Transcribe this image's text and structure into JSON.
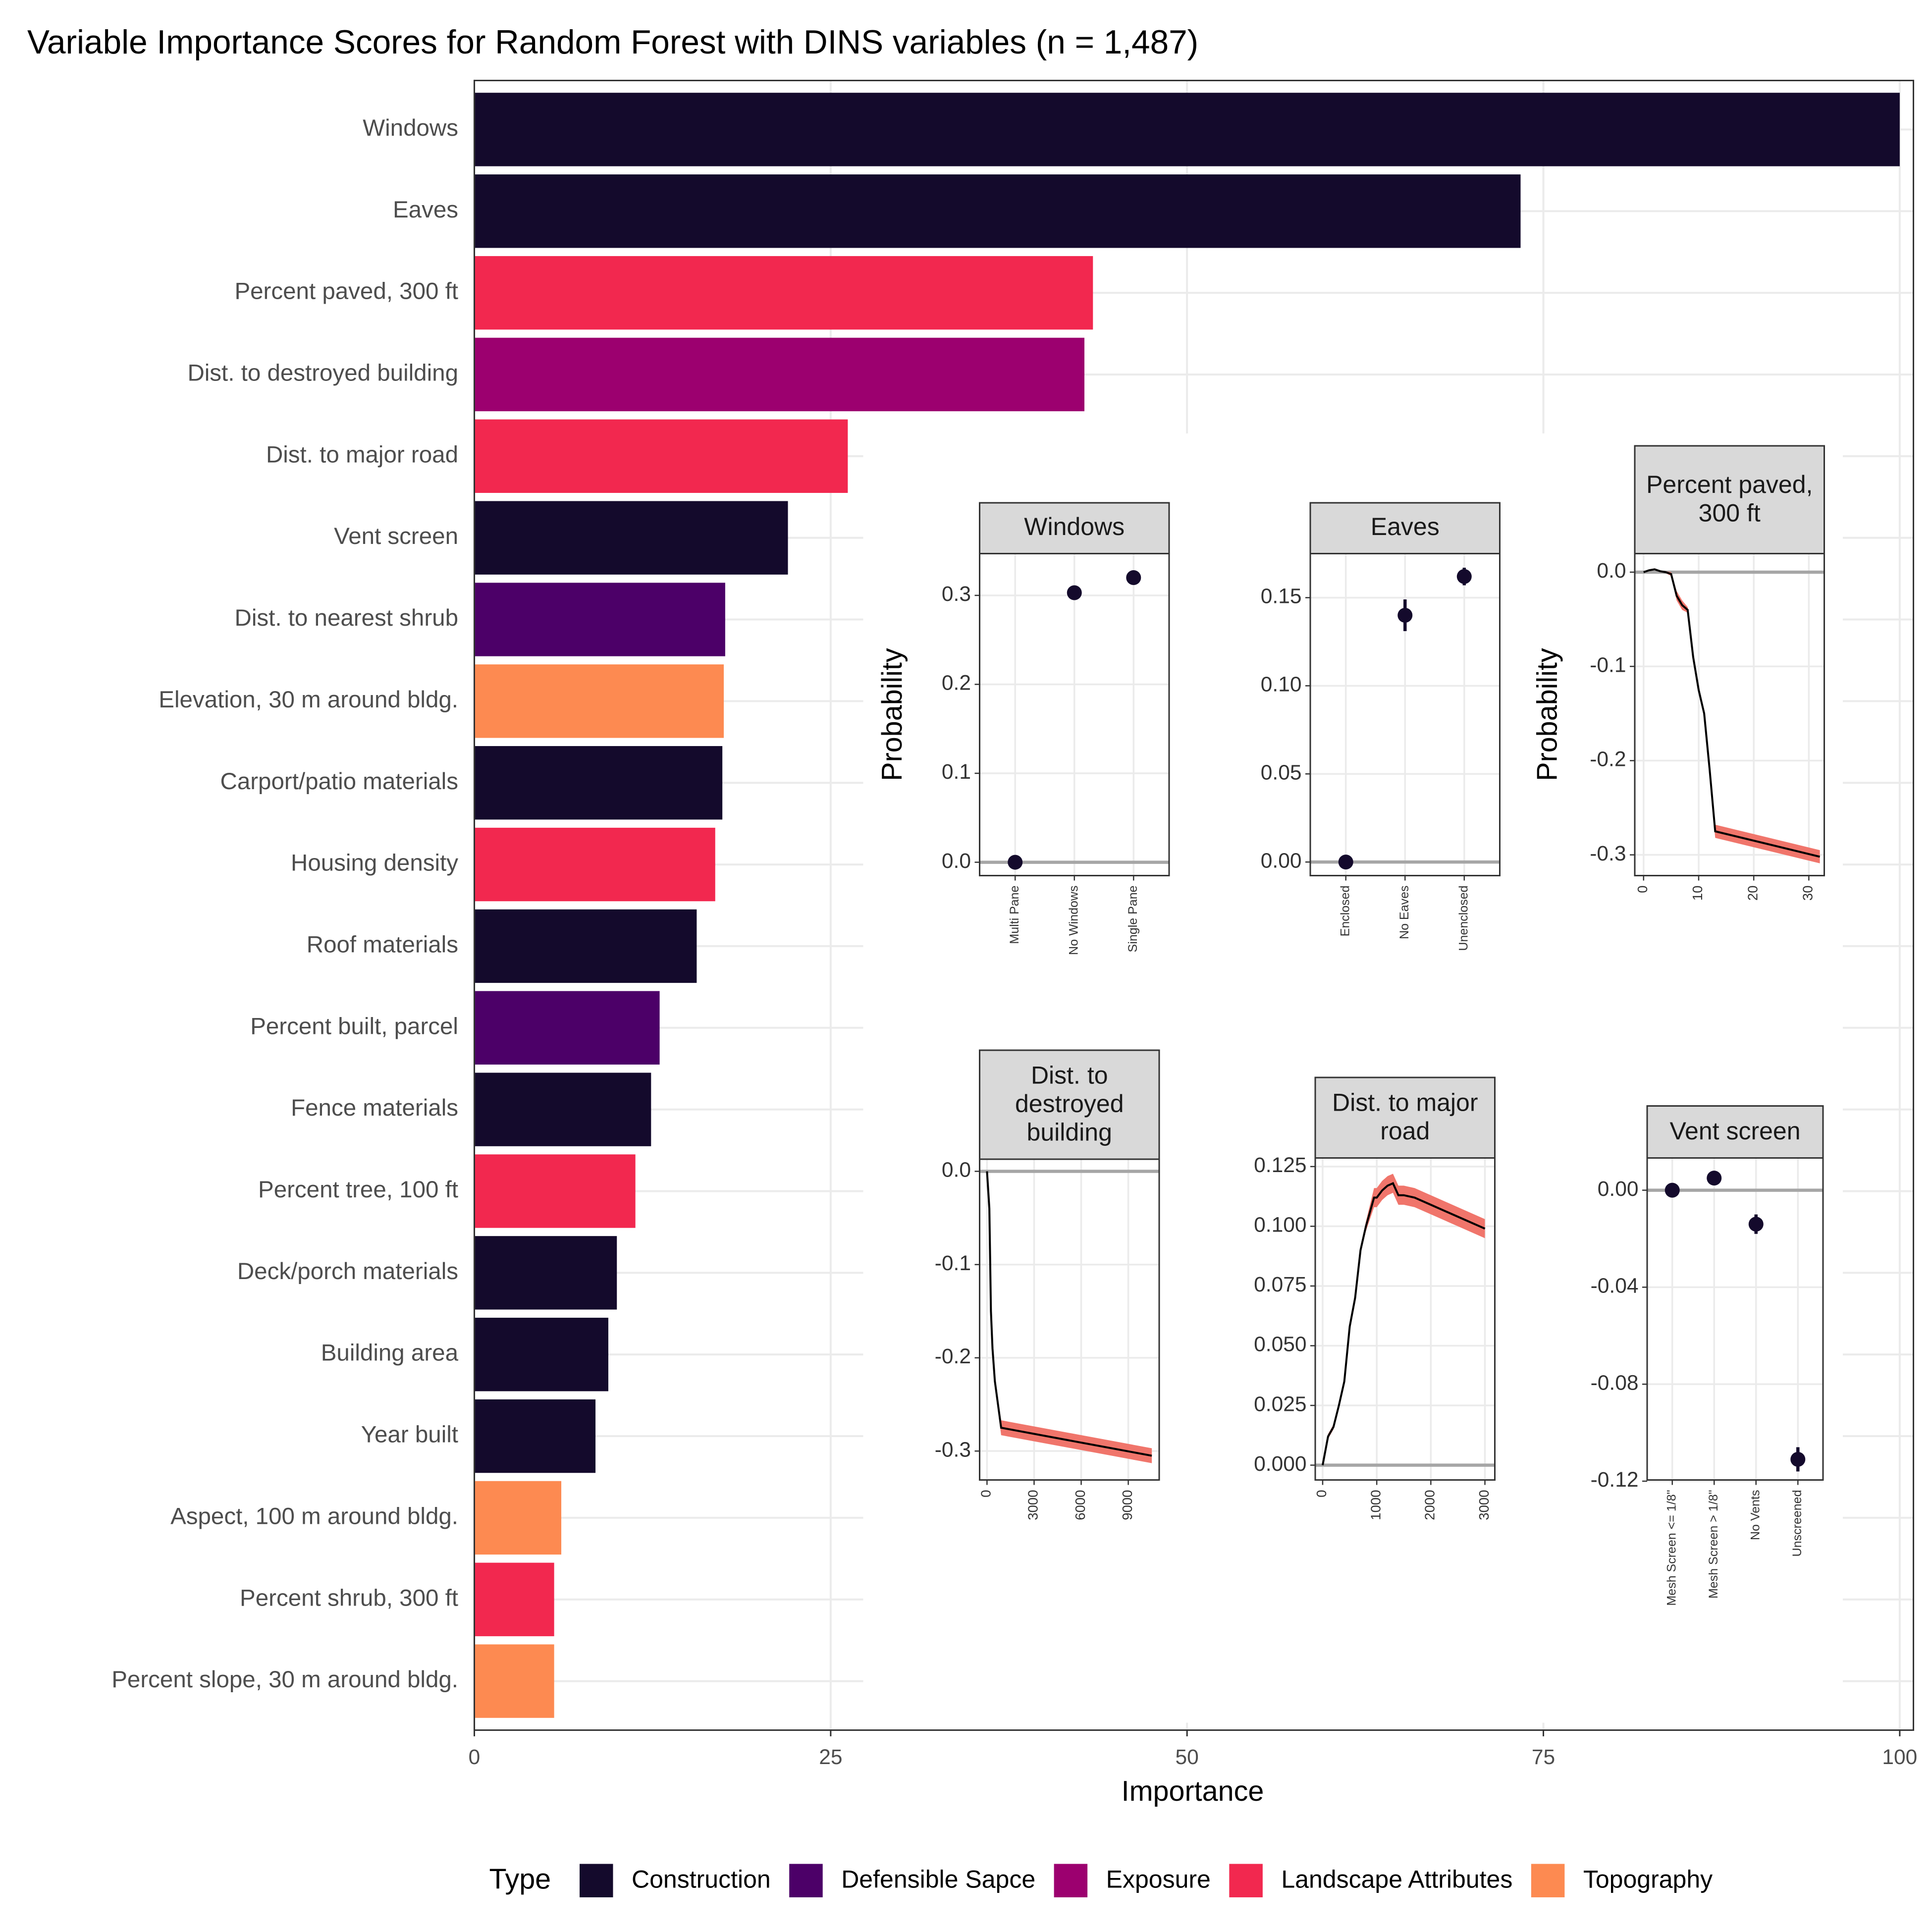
{
  "chart_data": [
    {
      "type": "bar",
      "orientation": "horizontal",
      "title": "Variable Importance Scores for Random Forest with DINS variables (n = 1,487)",
      "xlabel": "Importance",
      "categories": [
        "Windows",
        "Eaves",
        "Percent paved, 300 ft",
        "Dist. to destroyed building",
        "Dist. to major road",
        "Vent screen",
        "Dist. to nearest shrub",
        "Elevation, 30 m around bldg.",
        "Carport/patio materials",
        "Housing density",
        "Roof materials",
        "Percent built, parcel",
        "Fence materials",
        "Percent tree, 100 ft",
        "Deck/porch materials",
        "Building area",
        "Year built",
        "Aspect, 100 m around bldg.",
        "Percent shrub, 300 ft",
        "Percent slope, 30 m around bldg."
      ],
      "series": [
        {
          "name": "Construction",
          "color": "#140a2c",
          "values": [
            100,
            73.4,
            null,
            null,
            null,
            22,
            null,
            null,
            17.4,
            null,
            15.6,
            null,
            12.4,
            null,
            10,
            9.4,
            8.5,
            null,
            null,
            null
          ]
        },
        {
          "name": "Defensible Sapce",
          "color": "#4c0068",
          "values": [
            null,
            null,
            null,
            null,
            null,
            null,
            17.6,
            null,
            null,
            null,
            null,
            13,
            null,
            null,
            null,
            null,
            null,
            null,
            null,
            null
          ]
        },
        {
          "name": "Exposure",
          "color": "#9c006f",
          "values": [
            null,
            null,
            null,
            42.8,
            null,
            null,
            null,
            null,
            null,
            null,
            null,
            null,
            null,
            null,
            null,
            null,
            null,
            null,
            null,
            null
          ]
        },
        {
          "name": "Landscape Attributes",
          "color": "#f2284f",
          "values": [
            null,
            null,
            43.4,
            null,
            26.2,
            null,
            null,
            null,
            null,
            16.9,
            null,
            null,
            null,
            11.3,
            null,
            null,
            null,
            null,
            5.6,
            null
          ]
        },
        {
          "name": "Topography",
          "color": "#fd8a51",
          "values": [
            null,
            null,
            null,
            null,
            null,
            null,
            null,
            17.5,
            null,
            null,
            null,
            null,
            null,
            null,
            null,
            null,
            null,
            6.1,
            null,
            5.6
          ]
        }
      ],
      "xlim": [
        0,
        100.96
      ],
      "xticks": [
        0,
        25,
        50,
        75,
        100
      ],
      "grid": true,
      "legend_title": "Type",
      "legend": "bottom"
    },
    {
      "type": "point",
      "title": "Windows",
      "ylabel": "Probability",
      "categories": [
        "Multi Pane",
        "No Windows",
        "Single Pane"
      ],
      "values": [
        0,
        0.303,
        0.32
      ],
      "errors": [
        0.002,
        0.006,
        0.008
      ],
      "ylim": [
        -0.015,
        0.347
      ],
      "yticks": [
        {
          "value": 0,
          "label": "0.0"
        },
        0.1,
        0.2,
        0.3
      ],
      "hline": 0,
      "color": "#140a2c"
    },
    {
      "type": "point",
      "title": "Eaves",
      "categories": [
        "Enclosed",
        "No Eaves",
        "Unenclosed"
      ],
      "values": [
        0,
        0.14,
        0.162
      ],
      "errors": [
        0.001,
        0.009,
        0.005
      ],
      "ylim": [
        -0.0077,
        0.175
      ],
      "yticks": [
        {
          "value": 0,
          "label": "0.00"
        },
        0.05,
        {
          "value": 0.1,
          "label": "0.10"
        },
        0.15
      ],
      "hline": 0,
      "color": "#140a2c"
    },
    {
      "type": "line",
      "title": "Percent paved, 300 ft",
      "ylabel": "Probability",
      "x": [
        0,
        1,
        2,
        3,
        4,
        5,
        6,
        7,
        8,
        9,
        10,
        11,
        12,
        13,
        32
      ],
      "values": [
        0,
        0.002,
        0.003,
        0.001,
        0,
        -0.002,
        -0.025,
        -0.035,
        -0.04,
        -0.09,
        -0.125,
        -0.15,
        -0.21,
        -0.275,
        -0.302
      ],
      "lower": [
        0,
        0.001,
        0.002,
        0,
        -0.001,
        -0.004,
        -0.03,
        -0.04,
        -0.043,
        -0.092,
        -0.127,
        -0.152,
        -0.213,
        -0.282,
        -0.309
      ],
      "upper": [
        0,
        0.003,
        0.004,
        0.002,
        0.001,
        0,
        -0.02,
        -0.03,
        -0.037,
        -0.088,
        -0.123,
        -0.148,
        -0.207,
        -0.268,
        -0.295
      ],
      "xlim": [
        -1.6,
        32.8
      ],
      "xticks": [
        0,
        10,
        20,
        30
      ],
      "ylim": [
        -0.322,
        0.0197
      ],
      "yticks": [
        -0.3,
        -0.2,
        -0.1,
        {
          "value": 0,
          "label": "0.0"
        }
      ],
      "hline": 0,
      "color": "#000000",
      "band_color": "#f0756b"
    },
    {
      "type": "line",
      "title": "Dist. to destroyed building",
      "x": [
        0,
        150,
        250,
        350,
        500,
        900,
        10500
      ],
      "values": [
        0,
        -0.04,
        -0.15,
        -0.19,
        -0.225,
        -0.275,
        -0.305
      ],
      "lower": [
        -0.001,
        -0.042,
        -0.152,
        -0.192,
        -0.228,
        -0.283,
        -0.313
      ],
      "upper": [
        0.001,
        -0.038,
        -0.148,
        -0.188,
        -0.222,
        -0.267,
        -0.297
      ],
      "xlim": [
        -470,
        10970
      ],
      "xticks": [
        0,
        3000,
        6000,
        9000
      ],
      "ylim": [
        -0.331,
        0.013
      ],
      "yticks": [
        -0.3,
        -0.2,
        -0.1,
        {
          "value": 0,
          "label": "0.0"
        }
      ],
      "hline": 0,
      "color": "#000000",
      "band_color": "#f0756b"
    },
    {
      "type": "line",
      "title": "Dist. to major road",
      "x": [
        0,
        100,
        200,
        300,
        400,
        500,
        600,
        700,
        800,
        950,
        1000,
        1100,
        1200,
        1300,
        1400,
        1500,
        1700,
        2000,
        2500,
        3000
      ],
      "values": [
        0,
        0.012,
        0.016,
        0.025,
        0.035,
        0.058,
        0.07,
        0.09,
        0.1,
        0.112,
        0.112,
        0.115,
        0.117,
        0.118,
        0.113,
        0.113,
        0.112,
        0.109,
        0.104,
        0.099
      ],
      "lower": [
        0,
        0.011,
        0.015,
        0.024,
        0.034,
        0.057,
        0.069,
        0.089,
        0.098,
        0.108,
        0.108,
        0.111,
        0.113,
        0.114,
        0.109,
        0.109,
        0.108,
        0.105,
        0.1,
        0.095
      ],
      "upper": [
        0,
        0.013,
        0.017,
        0.026,
        0.036,
        0.059,
        0.071,
        0.091,
        0.102,
        0.116,
        0.116,
        0.119,
        0.121,
        0.122,
        0.117,
        0.117,
        0.116,
        0.113,
        0.108,
        0.103
      ],
      "xlim": [
        -137,
        3183
      ],
      "xticks": [
        0,
        1000,
        2000,
        3000
      ],
      "ylim": [
        -0.0062,
        0.1286
      ],
      "yticks": [
        {
          "value": 0,
          "label": "0.000"
        },
        0.025,
        {
          "value": 0.05,
          "label": "0.050"
        },
        0.075,
        {
          "value": 0.1,
          "label": "0.100"
        },
        0.125
      ],
      "hline": 0,
      "color": "#000000",
      "band_color": "#f0756b"
    },
    {
      "type": "point",
      "title": "Vent screen",
      "categories": [
        "Mesh Screen <= 1/8\"",
        "Mesh Screen > 1/8\"",
        "No Vents",
        "Unscreened"
      ],
      "values": [
        0,
        0.005,
        -0.014,
        -0.111
      ],
      "errors": [
        0.001,
        0.001,
        0.004,
        0.005
      ],
      "ylim": [
        -0.1195,
        0.0133
      ],
      "yticks": [
        {
          "value": 0,
          "label": "0.00"
        },
        -0.04,
        -0.08,
        -0.12
      ],
      "hline": 0,
      "color": "#140a2c"
    }
  ]
}
